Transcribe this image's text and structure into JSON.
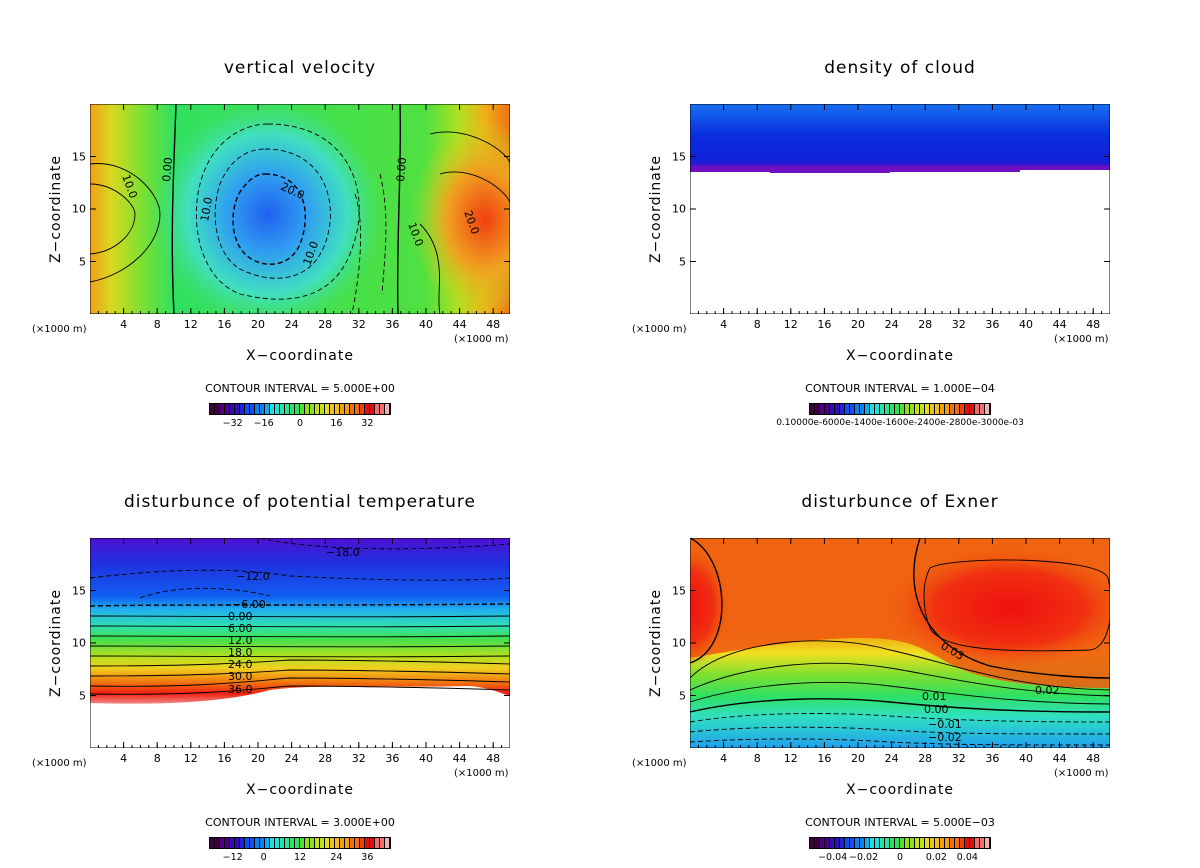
{
  "chart_data": [
    {
      "type": "heatmap",
      "title": "vertical velocity",
      "xlabel": "X−coordinate",
      "ylabel": "Z−coordinate",
      "x_unit": "(×1000 m)",
      "xlim": [
        0,
        50
      ],
      "ylim": [
        0,
        20
      ],
      "xticks": [
        "4",
        "8",
        "12",
        "16",
        "20",
        "24",
        "28",
        "32",
        "36",
        "40",
        "44",
        "48"
      ],
      "yticks": [
        "5",
        "10",
        "15"
      ],
      "contour_interval": "CONTOUR INTERVAL = 5.000E+00",
      "colorbar_ticks": [
        "−32",
        "−16",
        "0",
        "16",
        "32"
      ],
      "contour_labels": [
        "10.0",
        "0.00",
        "20.0",
        "10.0",
        "10.0",
        "0.00",
        "10.0",
        "20.0"
      ]
    },
    {
      "type": "heatmap",
      "title": "density of cloud",
      "xlabel": "X−coordinate",
      "ylabel": "Z−coordinate",
      "x_unit": "(×1000 m)",
      "xlim": [
        0,
        50
      ],
      "ylim": [
        0,
        20
      ],
      "xticks": [
        "4",
        "8",
        "12",
        "16",
        "20",
        "24",
        "28",
        "32",
        "36",
        "40",
        "44",
        "48"
      ],
      "yticks": [
        "5",
        "10",
        "15"
      ],
      "contour_interval": "CONTOUR INTERVAL = 1.000E−04",
      "colorbar_ticks_text": "0.10000e-6000e-1400e-1600e-2400e-2800e-3000e-03",
      "cloud_base_z": 13.8
    },
    {
      "type": "heatmap",
      "title": "disturbunce of potential temperature",
      "xlabel": "X−coordinate",
      "ylabel": "Z−coordinate",
      "x_unit": "(×1000 m)",
      "xlim": [
        0,
        50
      ],
      "ylim": [
        0,
        20
      ],
      "xticks": [
        "4",
        "8",
        "12",
        "16",
        "20",
        "24",
        "28",
        "32",
        "36",
        "40",
        "44",
        "48"
      ],
      "yticks": [
        "5",
        "10",
        "15"
      ],
      "contour_interval": "CONTOUR INTERVAL = 3.000E+00",
      "colorbar_ticks": [
        "−12",
        "0",
        "12",
        "24",
        "36"
      ],
      "contour_labels": [
        "−18.0",
        "−12.0",
        "−6.00",
        "0.00",
        "6.00",
        "12.0",
        "18.0",
        "24.0",
        "30.0",
        "36.0"
      ]
    },
    {
      "type": "heatmap",
      "title": "disturbunce of Exner",
      "xlabel": "X−coordinate",
      "ylabel": "Z−coordinate",
      "x_unit": "(×1000 m)",
      "xlim": [
        0,
        50
      ],
      "ylim": [
        0,
        20
      ],
      "xticks": [
        "4",
        "8",
        "12",
        "16",
        "20",
        "24",
        "28",
        "32",
        "36",
        "40",
        "44",
        "48"
      ],
      "yticks": [
        "5",
        "10",
        "15"
      ],
      "contour_interval": "CONTOUR INTERVAL = 5.000E−03",
      "colorbar_ticks": [
        "−0.04",
        "−0.02",
        "0",
        "0.02",
        "0.04"
      ],
      "contour_labels": [
        "0.03",
        "0.02",
        "0.01",
        "0.00",
        "−0.01",
        "−0.02"
      ]
    }
  ]
}
